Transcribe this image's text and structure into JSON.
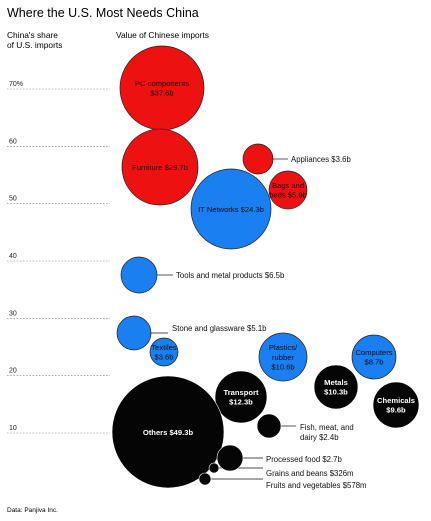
{
  "title": "Where the U.S. Most Needs China",
  "source": "Data: Panjiva Inc.",
  "chart_data": {
    "type": "scatter",
    "title": "Where the U.S. Most Needs China",
    "ylabel": "China's share of U.S. imports",
    "size_label": "Value of Chinese imports",
    "y_ticks": [
      {
        "value": 70,
        "label": "70%"
      },
      {
        "value": 60,
        "label": "60"
      },
      {
        "value": 50,
        "label": "50"
      },
      {
        "value": 40,
        "label": "40"
      },
      {
        "value": 30,
        "label": "30"
      },
      {
        "value": 20,
        "label": "20"
      },
      {
        "value": 10,
        "label": "10"
      }
    ],
    "ylim": [
      0,
      75
    ],
    "colors": {
      "red": "#ee1111",
      "blue": "#1a7ff0",
      "black": "#050505"
    },
    "items": [
      {
        "name": "PC components",
        "value_label": "$37.6b",
        "value_bn": 37.6,
        "share": 70,
        "color": "red",
        "label_inside": true
      },
      {
        "name": "Furniture",
        "value_label": "$29.7b",
        "value_bn": 29.7,
        "share": 58.5,
        "color": "red",
        "label_inside": true
      },
      {
        "name": "Appliances",
        "value_label": "$3.6b",
        "value_bn": 3.6,
        "share": 58.5,
        "color": "red",
        "label_inside": false
      },
      {
        "name": "Bags and beds",
        "value_label": "$5.9b",
        "value_bn": 5.9,
        "share": 52.5,
        "color": "red",
        "label_inside": true
      },
      {
        "name": "IT Networks",
        "value_label": "$24.3b",
        "value_bn": 24.3,
        "share": 51,
        "color": "blue",
        "label_inside": true
      },
      {
        "name": "Tools and metal products",
        "value_label": "$6.5b",
        "value_bn": 6.5,
        "share": 38.5,
        "color": "blue",
        "label_inside": false
      },
      {
        "name": "Stone and glassware",
        "value_label": "$5.1b",
        "value_bn": 5.1,
        "share": 28.5,
        "color": "blue",
        "label_inside": false
      },
      {
        "name": "Textiles",
        "value_label": "$3.6b",
        "value_bn": 3.6,
        "share": 25,
        "color": "blue",
        "label_inside": true
      },
      {
        "name": "Plastics/ rubber",
        "value_label": "$10.6b",
        "value_bn": 10.6,
        "share": 23.5,
        "color": "blue",
        "label_inside": true
      },
      {
        "name": "Computers",
        "value_label": "$8.7b",
        "value_bn": 8.7,
        "share": 23.5,
        "color": "blue",
        "label_inside": true
      },
      {
        "name": "Transport",
        "value_label": "$12.3b",
        "value_bn": 12.3,
        "share": 16.5,
        "color": "black",
        "label_inside": true
      },
      {
        "name": "Metals",
        "value_label": "$10.3b",
        "value_bn": 10.3,
        "share": 18,
        "color": "black",
        "label_inside": true
      },
      {
        "name": "Chemicals",
        "value_label": "$9.6b",
        "value_bn": 9.6,
        "share": 14,
        "color": "black",
        "label_inside": true
      },
      {
        "name": "Others",
        "value_label": "$49.3b",
        "value_bn": 49.3,
        "share": 10,
        "color": "black",
        "label_inside": true
      },
      {
        "name": "Fish, meat, and dairy",
        "value_label": "$2.4b",
        "value_bn": 2.4,
        "share": 11,
        "color": "black",
        "label_inside": false
      },
      {
        "name": "Processed food",
        "value_label": "$2.7b",
        "value_bn": 2.7,
        "share": 4.5,
        "color": "black",
        "label_inside": false
      },
      {
        "name": "Grains and beans",
        "value_label": "$326m",
        "value_bn": 0.326,
        "share": 2.5,
        "color": "black",
        "label_inside": false
      },
      {
        "name": "Fruits and vegetables",
        "value_label": "$578m",
        "value_bn": 0.578,
        "share": 0.5,
        "color": "black",
        "label_inside": false
      }
    ]
  }
}
